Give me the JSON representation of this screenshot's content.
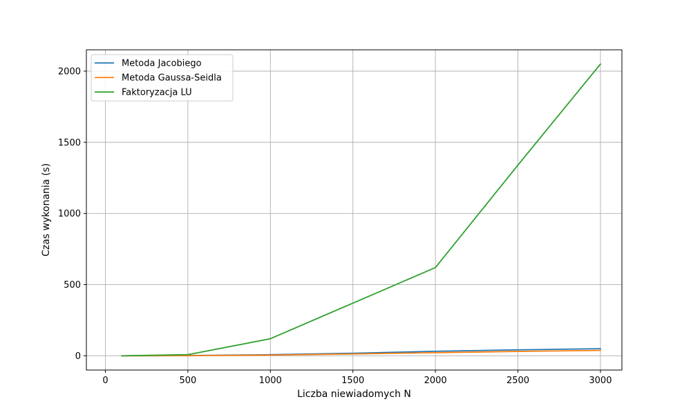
{
  "chart_data": {
    "type": "line",
    "title": "",
    "xlabel": "Liczba niewiadomych N",
    "ylabel": "Czas wykonania (s)",
    "x": [
      100,
      500,
      1000,
      1500,
      2000,
      2500,
      3000
    ],
    "xlim": [
      0,
      3000
    ],
    "ylim": [
      -100,
      2150
    ],
    "xticks": [
      0,
      500,
      1000,
      1500,
      2000,
      2500,
      3000
    ],
    "xtick_labels": [
      "0",
      "500",
      "1000",
      "1500",
      "2000",
      "2500",
      "3000"
    ],
    "yticks": [
      0,
      500,
      1000,
      1500,
      2000
    ],
    "ytick_labels": [
      "0",
      "500",
      "1000",
      "1500",
      "2000"
    ],
    "grid": true,
    "legend_position": "top-left",
    "series": [
      {
        "name": "Metoda Jacobiego",
        "color": "#1f77b4",
        "values": [
          0.1,
          2,
          8,
          18,
          32,
          42,
          50
        ]
      },
      {
        "name": "Metoda Gaussa-Seidla",
        "color": "#ff7f0e",
        "values": [
          0.05,
          1,
          5,
          13,
          22,
          31,
          38
        ]
      },
      {
        "name": "Faktoryzacja LU",
        "color": "#2ca02c",
        "values": [
          0.2,
          8,
          120,
          370,
          620,
          1340,
          2050
        ]
      }
    ]
  }
}
